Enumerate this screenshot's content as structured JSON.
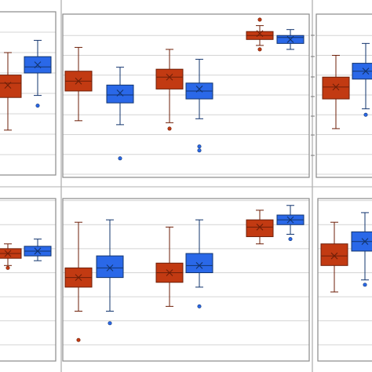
{
  "colors": {
    "series_a_fill": "#c23a12",
    "series_a_stroke": "#6e1f08",
    "series_b_fill": "#2a68e8",
    "series_b_stroke": "#12346e",
    "frame": "#8a8a8a",
    "grid": "#d4d4d4",
    "background": "#ffffff"
  },
  "chart_data": [
    {
      "type": "box",
      "panel": "top-left",
      "groups": [
        {
          "series": "A",
          "whisker_low": 2.2,
          "q1": 3.8,
          "median": 4.5,
          "q3": 4.9,
          "whisker_high": 6.0,
          "mean": 4.4,
          "outliers": []
        },
        {
          "series": "B",
          "whisker_low": 3.9,
          "q1": 5.0,
          "median": 5.3,
          "q3": 5.8,
          "whisker_high": 6.6,
          "mean": 5.4,
          "outliers": [
            3.4
          ]
        }
      ]
    },
    {
      "type": "box",
      "panel": "top-center",
      "groups": [
        {
          "series": "A",
          "whisker_low": 2.7,
          "q1": 4.2,
          "median": 4.7,
          "q3": 5.2,
          "whisker_high": 6.4,
          "mean": 4.7,
          "outliers": []
        },
        {
          "series": "B",
          "whisker_low": 2.5,
          "q1": 3.6,
          "median": 4.0,
          "q3": 4.5,
          "whisker_high": 5.4,
          "mean": 4.1,
          "outliers": [
            0.8
          ]
        },
        {
          "series": "A",
          "whisker_low": 2.6,
          "q1": 4.3,
          "median": 4.9,
          "q3": 5.3,
          "whisker_high": 6.3,
          "mean": 4.9,
          "outliers": [
            2.3
          ]
        },
        {
          "series": "B",
          "whisker_low": 2.8,
          "q1": 3.8,
          "median": 4.2,
          "q3": 4.6,
          "whisker_high": 5.8,
          "mean": 4.3,
          "outliers": [
            1.4,
            1.2
          ]
        },
        {
          "series": "A",
          "whisker_low": 6.5,
          "q1": 6.8,
          "median": 7.0,
          "q3": 7.2,
          "whisker_high": 7.5,
          "mean": 7.1,
          "outliers": [
            6.3,
            7.8
          ]
        },
        {
          "series": "B",
          "whisker_low": 6.3,
          "q1": 6.6,
          "median": 6.9,
          "q3": 7.0,
          "whisker_high": 7.3,
          "mean": 6.8,
          "outliers": []
        }
      ]
    },
    {
      "type": "box",
      "panel": "top-right",
      "groups": [
        {
          "series": "A",
          "whisker_low": 2.3,
          "q1": 3.8,
          "median": 4.4,
          "q3": 4.9,
          "whisker_high": 6.0,
          "mean": 4.4,
          "outliers": []
        },
        {
          "series": "B",
          "whisker_low": 3.3,
          "q1": 4.8,
          "median": 5.2,
          "q3": 5.6,
          "whisker_high": 6.6,
          "mean": 5.2,
          "outliers": [
            3.0
          ]
        }
      ]
    },
    {
      "type": "box",
      "panel": "bottom-left",
      "groups": [
        {
          "series": "A",
          "whisker_low": 4.3,
          "q1": 4.6,
          "median": 4.8,
          "q3": 5.0,
          "whisker_high": 5.2,
          "mean": 4.8,
          "outliers": [
            4.2
          ]
        },
        {
          "series": "B",
          "whisker_low": 4.5,
          "q1": 4.7,
          "median": 4.9,
          "q3": 5.1,
          "whisker_high": 5.4,
          "mean": 4.9,
          "outliers": []
        }
      ]
    },
    {
      "type": "box",
      "panel": "bottom-center",
      "groups": [
        {
          "series": "A",
          "whisker_low": 2.4,
          "q1": 3.4,
          "median": 3.8,
          "q3": 4.2,
          "whisker_high": 6.1,
          "mean": 3.8,
          "outliers": [
            1.2
          ]
        },
        {
          "series": "B",
          "whisker_low": 2.4,
          "q1": 3.8,
          "median": 4.2,
          "q3": 4.7,
          "whisker_high": 6.2,
          "mean": 4.2,
          "outliers": [
            1.9
          ]
        },
        {
          "series": "A",
          "whisker_low": 2.6,
          "q1": 3.6,
          "median": 4.0,
          "q3": 4.4,
          "whisker_high": 5.9,
          "mean": 4.0,
          "outliers": []
        },
        {
          "series": "B",
          "whisker_low": 3.4,
          "q1": 4.0,
          "median": 4.3,
          "q3": 4.8,
          "whisker_high": 6.2,
          "mean": 4.3,
          "outliers": [
            2.6
          ]
        },
        {
          "series": "A",
          "whisker_low": 5.2,
          "q1": 5.5,
          "median": 5.9,
          "q3": 6.2,
          "whisker_high": 6.6,
          "mean": 5.9,
          "outliers": []
        },
        {
          "series": "B",
          "whisker_low": 5.6,
          "q1": 6.0,
          "median": 6.2,
          "q3": 6.4,
          "whisker_high": 6.8,
          "mean": 6.2,
          "outliers": [
            5.4
          ]
        }
      ]
    },
    {
      "type": "box",
      "panel": "bottom-right",
      "groups": [
        {
          "series": "A",
          "whisker_low": 3.2,
          "q1": 4.3,
          "median": 4.7,
          "q3": 5.2,
          "whisker_high": 6.1,
          "mean": 4.7,
          "outliers": []
        },
        {
          "series": "B",
          "whisker_low": 3.7,
          "q1": 4.9,
          "median": 5.3,
          "q3": 5.7,
          "whisker_high": 6.5,
          "mean": 5.3,
          "outliers": [
            3.5
          ]
        }
      ]
    }
  ]
}
